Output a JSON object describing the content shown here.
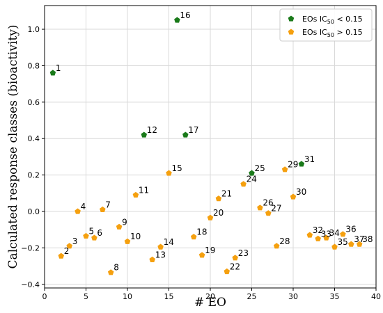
{
  "chart_data": {
    "type": "scatter",
    "title": "",
    "xlabel": "# EO",
    "ylabel": "Calculated response classes (bioactivity)",
    "xlim": [
      0,
      40
    ],
    "ylim": [
      -0.42,
      1.13
    ],
    "grid": true,
    "legend_position": "top-right",
    "x_ticks": [
      0,
      5,
      10,
      15,
      20,
      25,
      30,
      35,
      40
    ],
    "y_ticks": [
      -0.4,
      -0.2,
      0.0,
      0.2,
      0.4,
      0.6,
      0.8,
      1.0
    ],
    "x_tick_labels": [
      "0",
      "5",
      "10",
      "15",
      "20",
      "25",
      "30",
      "35",
      "40"
    ],
    "y_tick_labels": [
      "−0.4",
      "−0.2",
      "0.0",
      "0.2",
      "0.4",
      "0.6",
      "0.8",
      "1.0"
    ],
    "series": [
      {
        "legend_prefix": "EOs IC",
        "legend_sub": "50",
        "legend_suffix": " < 0.15",
        "color": "#1a7a1a",
        "marker": "pentagon",
        "points": [
          {
            "x": 1,
            "y": 0.76,
            "label": "1"
          },
          {
            "x": 12,
            "y": 0.42,
            "label": "12"
          },
          {
            "x": 16,
            "y": 1.05,
            "label": "16"
          },
          {
            "x": 17,
            "y": 0.42,
            "label": "17"
          },
          {
            "x": 25,
            "y": 0.21,
            "label": "25"
          },
          {
            "x": 31,
            "y": 0.26,
            "label": "31"
          }
        ]
      },
      {
        "legend_prefix": "EOs IC",
        "legend_sub": "50",
        "legend_suffix": " > 0.15",
        "color": "#f5a00f",
        "marker": "pentagon",
        "points": [
          {
            "x": 2,
            "y": -0.245,
            "label": "2"
          },
          {
            "x": 3,
            "y": -0.19,
            "label": "3"
          },
          {
            "x": 4,
            "y": 0.0,
            "label": "4"
          },
          {
            "x": 5,
            "y": -0.135,
            "label": "5"
          },
          {
            "x": 6,
            "y": -0.145,
            "label": "6"
          },
          {
            "x": 7,
            "y": 0.01,
            "label": "7"
          },
          {
            "x": 8,
            "y": -0.335,
            "label": "8"
          },
          {
            "x": 9,
            "y": -0.085,
            "label": "9"
          },
          {
            "x": 10,
            "y": -0.165,
            "label": "10"
          },
          {
            "x": 11,
            "y": 0.09,
            "label": "11"
          },
          {
            "x": 13,
            "y": -0.265,
            "label": "13"
          },
          {
            "x": 14,
            "y": -0.195,
            "label": "14"
          },
          {
            "x": 15,
            "y": 0.21,
            "label": "15"
          },
          {
            "x": 18,
            "y": -0.14,
            "label": "18"
          },
          {
            "x": 19,
            "y": -0.24,
            "label": "19"
          },
          {
            "x": 20,
            "y": -0.035,
            "label": "20"
          },
          {
            "x": 21,
            "y": 0.07,
            "label": "21"
          },
          {
            "x": 22,
            "y": -0.33,
            "label": "22"
          },
          {
            "x": 23,
            "y": -0.255,
            "label": "23"
          },
          {
            "x": 24,
            "y": 0.15,
            "label": "24"
          },
          {
            "x": 26,
            "y": 0.02,
            "label": "26"
          },
          {
            "x": 27,
            "y": -0.01,
            "label": "27"
          },
          {
            "x": 28,
            "y": -0.19,
            "label": "28"
          },
          {
            "x": 29,
            "y": 0.23,
            "label": "29"
          },
          {
            "x": 30,
            "y": 0.08,
            "label": "30"
          },
          {
            "x": 32,
            "y": -0.13,
            "label": "32"
          },
          {
            "x": 33,
            "y": -0.15,
            "label": "33"
          },
          {
            "x": 34,
            "y": -0.145,
            "label": "34"
          },
          {
            "x": 35,
            "y": -0.195,
            "label": "35"
          },
          {
            "x": 36,
            "y": -0.125,
            "label": "36"
          },
          {
            "x": 37,
            "y": -0.18,
            "label": "37"
          },
          {
            "x": 38,
            "y": -0.18,
            "label": "38"
          }
        ]
      }
    ]
  }
}
